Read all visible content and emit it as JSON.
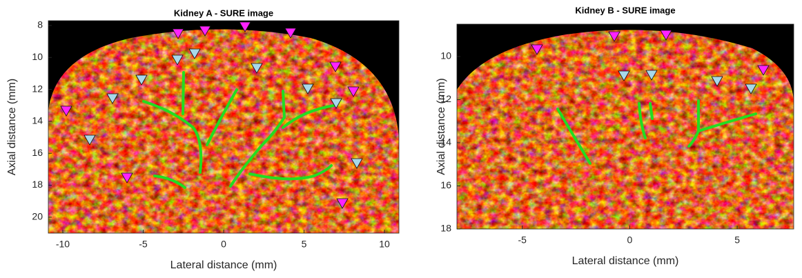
{
  "chart_data": [
    {
      "type": "image",
      "title": "Kidney A - SURE image",
      "xlabel": "Lateral distance (mm)",
      "ylabel": "Axial distance (mm)",
      "xlim": [
        -10.9,
        10.9
      ],
      "ylim": [
        7.7,
        21
      ],
      "y_reversed": true,
      "xticks": [
        -10,
        -5,
        0,
        5,
        10
      ],
      "yticks": [
        8,
        10,
        12,
        14,
        16,
        18,
        20
      ]
    },
    {
      "type": "image",
      "title": "Kidney B - SURE image",
      "xlabel": "Lateral distance (mm)",
      "ylabel": "Axial distance (mm)",
      "xlim": [
        -8.04,
        7.63
      ],
      "ylim": [
        8.5,
        18
      ],
      "y_reversed": true,
      "xticks": [
        -5,
        0,
        5
      ],
      "yticks": [
        10,
        12,
        14,
        16,
        18
      ]
    }
  ]
}
